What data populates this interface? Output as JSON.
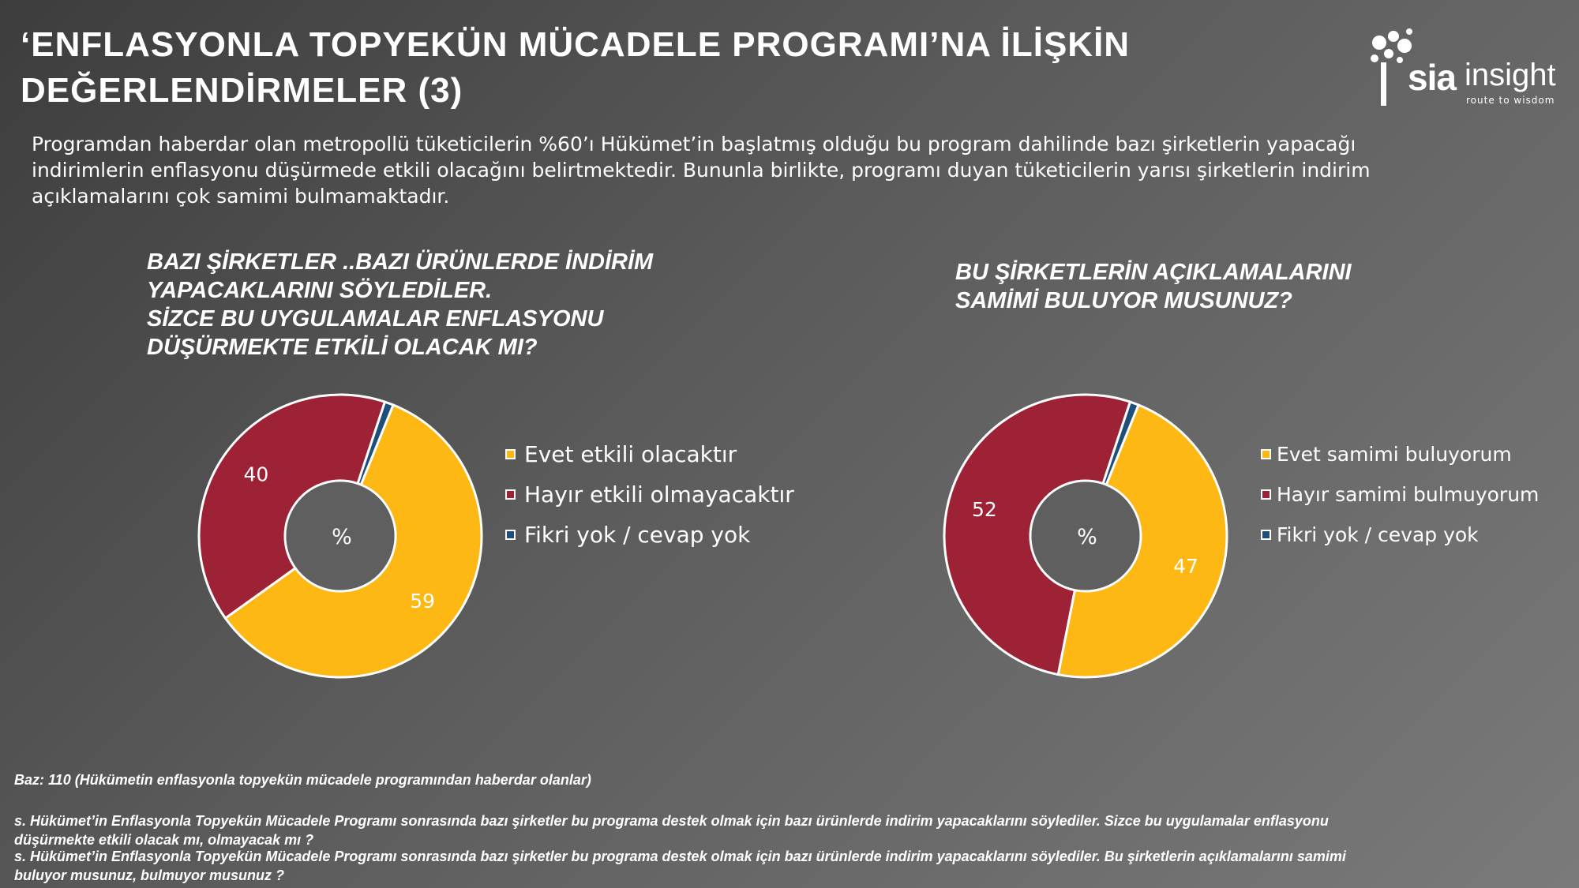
{
  "title": {
    "line1": "‘ENFLASYONLA TOPYEKÜN MÜCADELE PROGRAMI’NA İLİŞKİN",
    "line2": "DEĞERLENDİRMELER (3)"
  },
  "logo": {
    "brand1": "sia",
    "brand2": "insight",
    "tagline": "route to wisdom"
  },
  "intro": "Programdan haberdar olan metropollü tüketicilerin %60’ı Hükümet’in başlatmış olduğu bu program dahilinde bazı şirketlerin yapacağı indirimlerin enflasyonu düşürmede etkili olacağını belirtmektedir. Bununla birlikte, programı duyan tüketicilerin yarısı şirketlerin indirim açıklamalarını çok samimi bulmamaktadır.",
  "questions": {
    "q1": [
      "BAZI ŞİRKETLER ..BAZI ÜRÜNLERDE İNDİRİM",
      "YAPACAKLARINI SÖYLEDİLER.",
      "SİZCE BU UYGULAMALAR ENFLASYONU",
      "DÜŞÜRMEKTE ETKİLİ OLACAK MI?"
    ],
    "q2": [
      "BU ŞİRKETLERİN AÇIKLAMALARINI",
      "SAMİMİ BULUYOR MUSUNUZ?"
    ]
  },
  "colors": {
    "yellow": "#FDB813",
    "red": "#9E2236",
    "blue": "#1F4E79",
    "hole": "#5f5f5f"
  },
  "chart_data": [
    {
      "type": "pie",
      "center_label": "%",
      "categories": [
        "Evet etkili olacaktır",
        "Hayır etkili olmayacaktır",
        "Fikri yok / cevap yok"
      ],
      "values": [
        59,
        40,
        1
      ],
      "data_labels": [
        "59",
        "40",
        ""
      ]
    },
    {
      "type": "pie",
      "center_label": "%",
      "categories": [
        "Evet samimi buluyorum",
        "Hayır samimi bulmuyorum",
        "Fikri yok / cevap yok"
      ],
      "values": [
        47,
        52,
        1
      ],
      "data_labels": [
        "47",
        "52",
        ""
      ]
    }
  ],
  "footer": {
    "base": "Baz: 110 (Hükümetin enflasyonla topyekün mücadele programından haberdar olanlar)",
    "note1_line1": "s. Hükümet’in Enflasyonla Topyekün Mücadele Programı sonrasında bazı şirketler bu programa destek olmak için bazı ürünlerde indirim yapacaklarını söylediler. Sizce bu uygulamalar enflasyonu",
    "note1_line2": "düşürmekte etkili olacak mı, olmayacak mı ?",
    "note2_line1": "s. Hükümet’in Enflasyonla Topyekün Mücadele Programı sonrasında bazı şirketler bu programa destek olmak için bazı ürünlerde indirim yapacaklarını söylediler. Bu şirketlerin açıklamalarını samimi",
    "note2_line2": "buluyor musunuz, bulmuyor musunuz ?"
  }
}
